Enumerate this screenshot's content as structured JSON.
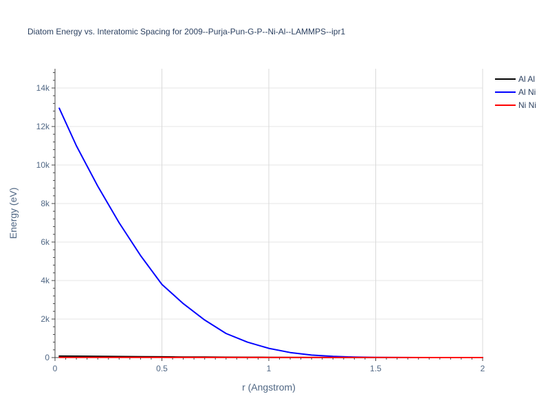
{
  "chart_data": {
    "type": "line",
    "title": "Diatom Energy vs. Interatomic Spacing for 2009--Purja-Pun-G-P--Ni-Al--LAMMPS--ipr1",
    "xlabel": "r (Angstrom)",
    "ylabel": "Energy (eV)",
    "xlim": [
      0,
      2
    ],
    "ylim": [
      0,
      15000
    ],
    "x_ticks": [
      0,
      0.5,
      1,
      1.5,
      2
    ],
    "x_tick_labels": [
      "0",
      "0.5",
      "1",
      "1.5",
      "2"
    ],
    "y_ticks": [
      0,
      2000,
      4000,
      6000,
      8000,
      10000,
      12000,
      14000
    ],
    "y_tick_labels": [
      "0",
      "2k",
      "4k",
      "6k",
      "8k",
      "10k",
      "12k",
      "14k"
    ],
    "grid": true,
    "legend_position": "top-right",
    "series": [
      {
        "name": "Al Al",
        "color": "#000000",
        "x": [
          0.02,
          0.1,
          0.2,
          0.3,
          0.4,
          0.5,
          0.6,
          0.7,
          0.8,
          0.9,
          1.0,
          1.2,
          1.4,
          1.6,
          1.8,
          2.0
        ],
        "y": [
          75,
          70,
          62,
          54,
          46,
          38,
          30,
          24,
          18,
          13,
          9,
          4,
          1,
          0,
          0,
          0
        ]
      },
      {
        "name": "Al Ni",
        "color": "#0000ff",
        "x": [
          0.02,
          0.1,
          0.2,
          0.3,
          0.4,
          0.5,
          0.6,
          0.7,
          0.8,
          0.9,
          1.0,
          1.1,
          1.2,
          1.3,
          1.4,
          1.5,
          1.6,
          1.7,
          1.8,
          1.9,
          2.0
        ],
        "y": [
          12950,
          11000,
          8900,
          7000,
          5300,
          3800,
          2800,
          1950,
          1250,
          800,
          480,
          260,
          130,
          60,
          25,
          10,
          4,
          1,
          0,
          0,
          0
        ]
      },
      {
        "name": "Ni Ni",
        "color": "#ff0000",
        "x": [
          0.02,
          0.5,
          1.0,
          1.5,
          2.0
        ],
        "y": [
          10,
          8,
          5,
          2,
          0
        ]
      }
    ]
  }
}
